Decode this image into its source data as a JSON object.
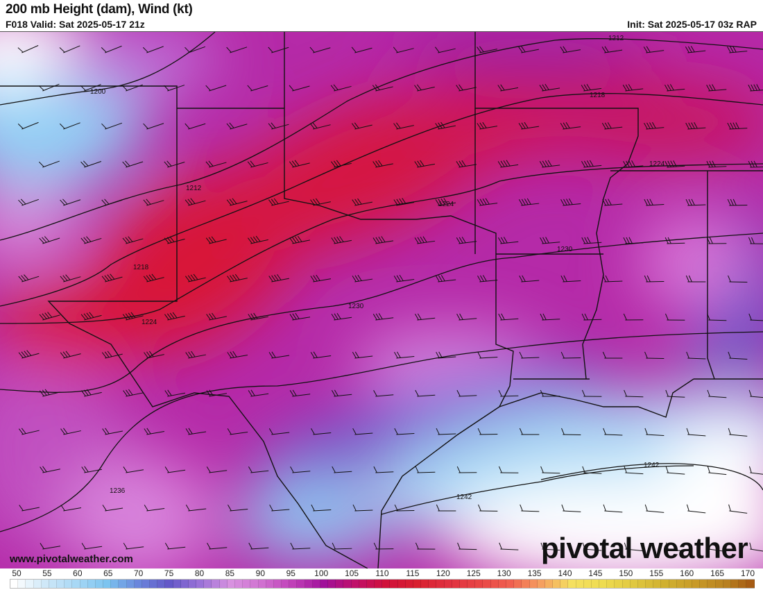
{
  "header": {
    "title": "200 mb Height (dam), Wind (kt)",
    "valid": "F018 Valid: Sat 2025-05-17 21z",
    "init": "Init: Sat 2025-05-17 03z RAP"
  },
  "footer": {
    "website": "www.pivotalweather.com",
    "logo": "pivotal weather"
  },
  "contours": {
    "labels": [
      "1200",
      "1212",
      "1212",
      "1218",
      "1218",
      "1224",
      "1224",
      "1224",
      "1230",
      "1230",
      "1236",
      "1242",
      "1242"
    ]
  },
  "colorbar": {
    "ticks": [
      "50",
      "55",
      "60",
      "65",
      "70",
      "75",
      "80",
      "85",
      "90",
      "95",
      "100",
      "105",
      "110",
      "115",
      "120",
      "125",
      "130",
      "135",
      "140",
      "145",
      "150",
      "155",
      "160",
      "165",
      "170"
    ],
    "colors": [
      "#ffffff",
      "#cfe8f8",
      "#a8d8f5",
      "#7cc4f0",
      "#6a86dc",
      "#6458c8",
      "#9a72d8",
      "#d892e0",
      "#d070d0",
      "#c040b8",
      "#a0109a",
      "#c0106a",
      "#d0103a",
      "#d82030",
      "#e03040",
      "#e84545",
      "#f06050",
      "#f5a060",
      "#f5e060",
      "#eedc50",
      "#e0c840",
      "#d0b030",
      "#c89a28",
      "#b88020",
      "#a05010"
    ]
  }
}
